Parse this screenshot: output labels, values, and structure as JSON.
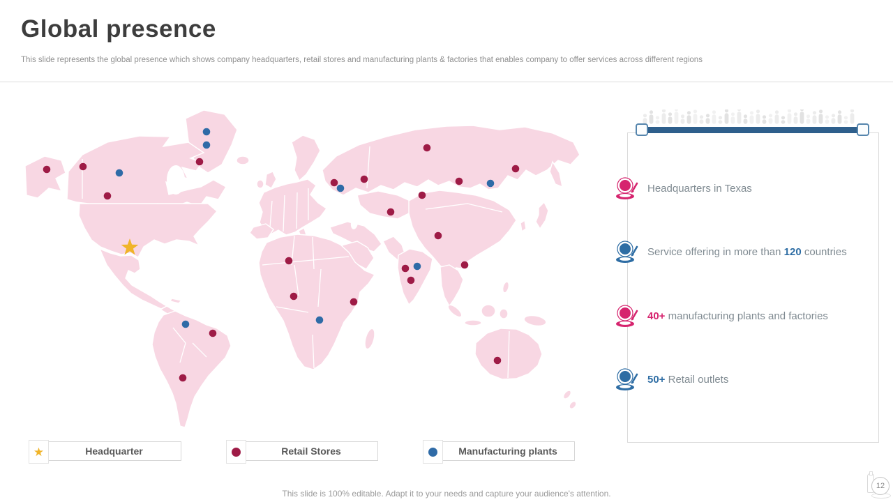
{
  "header": {
    "title": "Global presence",
    "subtitle": "This slide represents the global presence which shows company headquarters, retail stores and manufacturing plants & factories that enables company to offer services across different regions"
  },
  "legend": {
    "items": [
      {
        "label": "Headquarter",
        "type": "star",
        "glyph": "★",
        "color": "#f0b429"
      },
      {
        "label": "Retail Stores",
        "type": "dot",
        "color": "#9e1b46"
      },
      {
        "label": "Manufacturing plants",
        "type": "dot",
        "color": "#2f6ba7"
      }
    ]
  },
  "panel": {
    "items": [
      {
        "color": "#d6246e",
        "pre": "Headquarters in Texas",
        "highlight": "",
        "post": ""
      },
      {
        "color": "#2e6da4",
        "pre": "Service offering in more than ",
        "highlight": "120",
        "post": " countries"
      },
      {
        "color": "#d6246e",
        "pre": "",
        "highlight": "40+",
        "post": " manufacturing plants and factories"
      },
      {
        "color": "#2e6da4",
        "pre": "",
        "highlight": "50+",
        "post": " Retail outlets"
      }
    ]
  },
  "map": {
    "colors": {
      "land": "#f8d7e3",
      "retail": "#9e1b46",
      "manufacturing": "#2f6ba7",
      "star": "#f0b429"
    },
    "markers": {
      "headquarter": [
        [
          156,
          215
        ]
      ],
      "retail": [
        [
          37,
          103
        ],
        [
          89,
          99
        ],
        [
          124,
          141
        ],
        [
          256,
          92
        ],
        [
          449,
          122
        ],
        [
          492,
          117
        ],
        [
          582,
          72
        ],
        [
          709,
          102
        ],
        [
          628,
          120
        ],
        [
          575,
          140
        ],
        [
          530,
          164
        ],
        [
          598,
          198
        ],
        [
          636,
          240
        ],
        [
          384,
          234
        ],
        [
          391,
          285
        ],
        [
          477,
          293
        ],
        [
          551,
          245
        ],
        [
          559,
          262
        ],
        [
          275,
          338
        ],
        [
          232,
          402
        ],
        [
          683,
          377
        ]
      ],
      "manufacturing": [
        [
          141,
          108
        ],
        [
          266,
          49
        ],
        [
          266,
          68
        ],
        [
          458,
          130
        ],
        [
          673,
          123
        ],
        [
          568,
          242
        ],
        [
          428,
          319
        ],
        [
          236,
          325
        ]
      ]
    }
  },
  "footer": {
    "note": "This slide is 100% editable. Adapt it to your needs and capture your audience's attention.",
    "page_number": "12"
  }
}
